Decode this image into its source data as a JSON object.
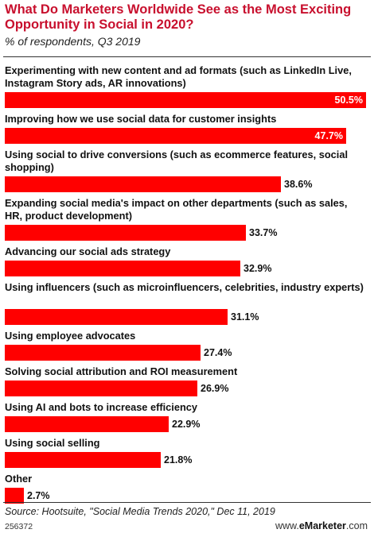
{
  "header": {
    "title": "What Do Marketers Worldwide See as the Most Exciting Opportunity in Social in 2020?",
    "subtitle": "% of respondents, Q3 2019"
  },
  "chart_data": {
    "type": "bar",
    "orientation": "horizontal",
    "categories": [
      "Experimenting with new content and ad formats (such as LinkedIn Live, Instagram Story ads, AR innovations)",
      "Improving how we use social data for customer insights",
      "Using social to drive conversions (such as ecommerce features, social shopping)",
      "Expanding social media's impact on other departments (such as sales, HR, product development)",
      "Advancing our social ads strategy",
      "Using influencers (such as microinfluencers, celebrities, industry experts)",
      "Using employee advocates",
      "Solving social attribution and ROI measurement",
      "Using AI and bots to increase efficiency",
      "Using social selling",
      "Other"
    ],
    "values": [
      50.5,
      47.7,
      38.6,
      33.7,
      32.9,
      31.1,
      27.4,
      26.9,
      22.9,
      21.8,
      2.7
    ],
    "value_labels": [
      "50.5%",
      "47.7%",
      "38.6%",
      "33.7%",
      "32.9%",
      "31.1%",
      "27.4%",
      "26.9%",
      "22.9%",
      "21.8%",
      "2.7%"
    ],
    "bar_color": "#ff0000",
    "xlim": [
      0,
      50.5
    ],
    "grid": false,
    "legend": "none"
  },
  "footer": {
    "source": "Source: Hootsuite, \"Social Media Trends 2020,\" Dec 11, 2019",
    "chart_id": "256372",
    "brand_prefix": "www.",
    "brand_name": "eMarketer",
    "brand_suffix": ".com"
  }
}
